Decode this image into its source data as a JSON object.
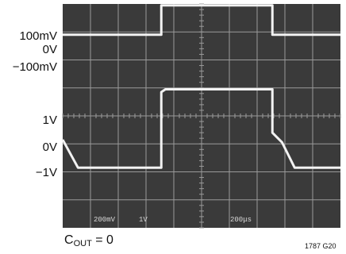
{
  "chart_data": {
    "type": "line",
    "background_color": "#3a3a3a",
    "grid_color": "#9a9a9a",
    "trace_color": "#f2f2f2",
    "grid": true,
    "grid_divisions": [
      10,
      8
    ],
    "x_lim_div": [
      0,
      10
    ],
    "y_lim_div": [
      -4,
      4
    ],
    "time_per_div": "200μs",
    "screen_time_labels": [
      "200mV",
      "1V",
      "200μs"
    ],
    "y_labels_top": [
      "100mV",
      "0V",
      "−100mV"
    ],
    "y_labels_bottom": [
      "1V",
      "0V",
      "−1V"
    ],
    "series": [
      {
        "name": "",
        "x_div": [
          0.0,
          3.55,
          3.55,
          7.55,
          7.55,
          10.0
        ],
        "y_div": [
          2.9,
          2.9,
          3.95,
          3.95,
          2.9,
          2.9
        ]
      },
      {
        "name": "",
        "x_div": [
          0.0,
          0.55,
          3.55,
          3.55,
          3.7,
          7.55,
          7.55,
          7.9,
          8.35,
          10.0
        ],
        "y_div": [
          -0.85,
          -1.85,
          -1.85,
          0.85,
          0.95,
          0.95,
          -0.6,
          -0.95,
          -1.85,
          -1.85
        ]
      }
    ]
  },
  "caption": {
    "cout_main": "C",
    "cout_sub": "OUT",
    "cout_rest": " = 0"
  },
  "figure_id": "1787 G20"
}
